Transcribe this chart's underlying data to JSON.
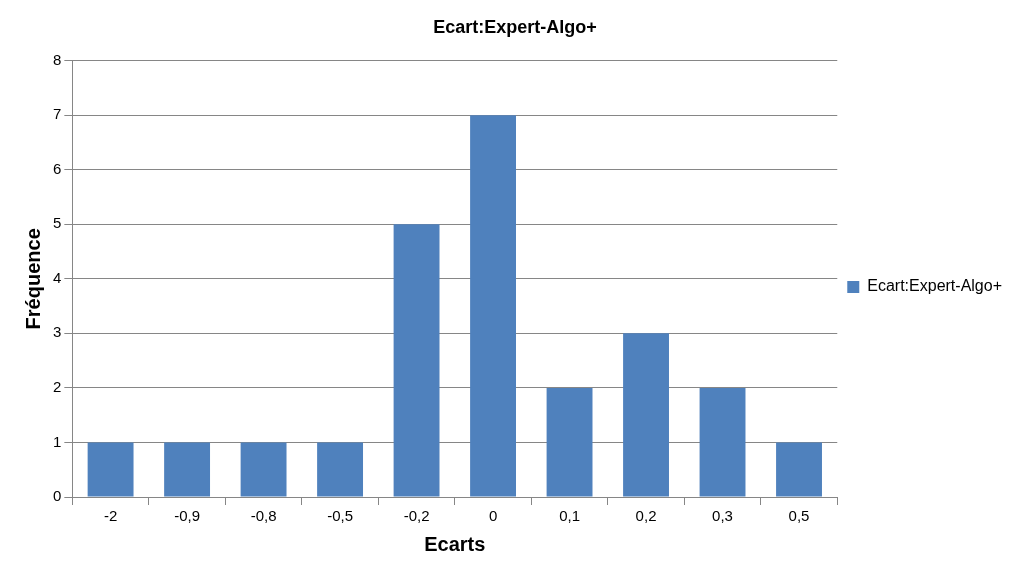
{
  "chart_data": {
    "type": "bar",
    "title": "Ecart:Expert-Algo+",
    "xlabel": "Ecarts",
    "ylabel": "Fréquence",
    "categories": [
      "-2",
      "-0,9",
      "-0,8",
      "-0,5",
      "-0,2",
      "0",
      "0,1",
      "0,2",
      "0,3",
      "0,5"
    ],
    "series": [
      {
        "name": "Ecart:Expert-Algo+",
        "color": "#4f81bd",
        "values": [
          1,
          1,
          1,
          1,
          5,
          7,
          2,
          3,
          2,
          1
        ]
      }
    ],
    "ylim": [
      0,
      8
    ],
    "yticks": [
      0,
      1,
      2,
      3,
      4,
      5,
      6,
      7,
      8
    ],
    "grid": "y",
    "legend": "right"
  }
}
